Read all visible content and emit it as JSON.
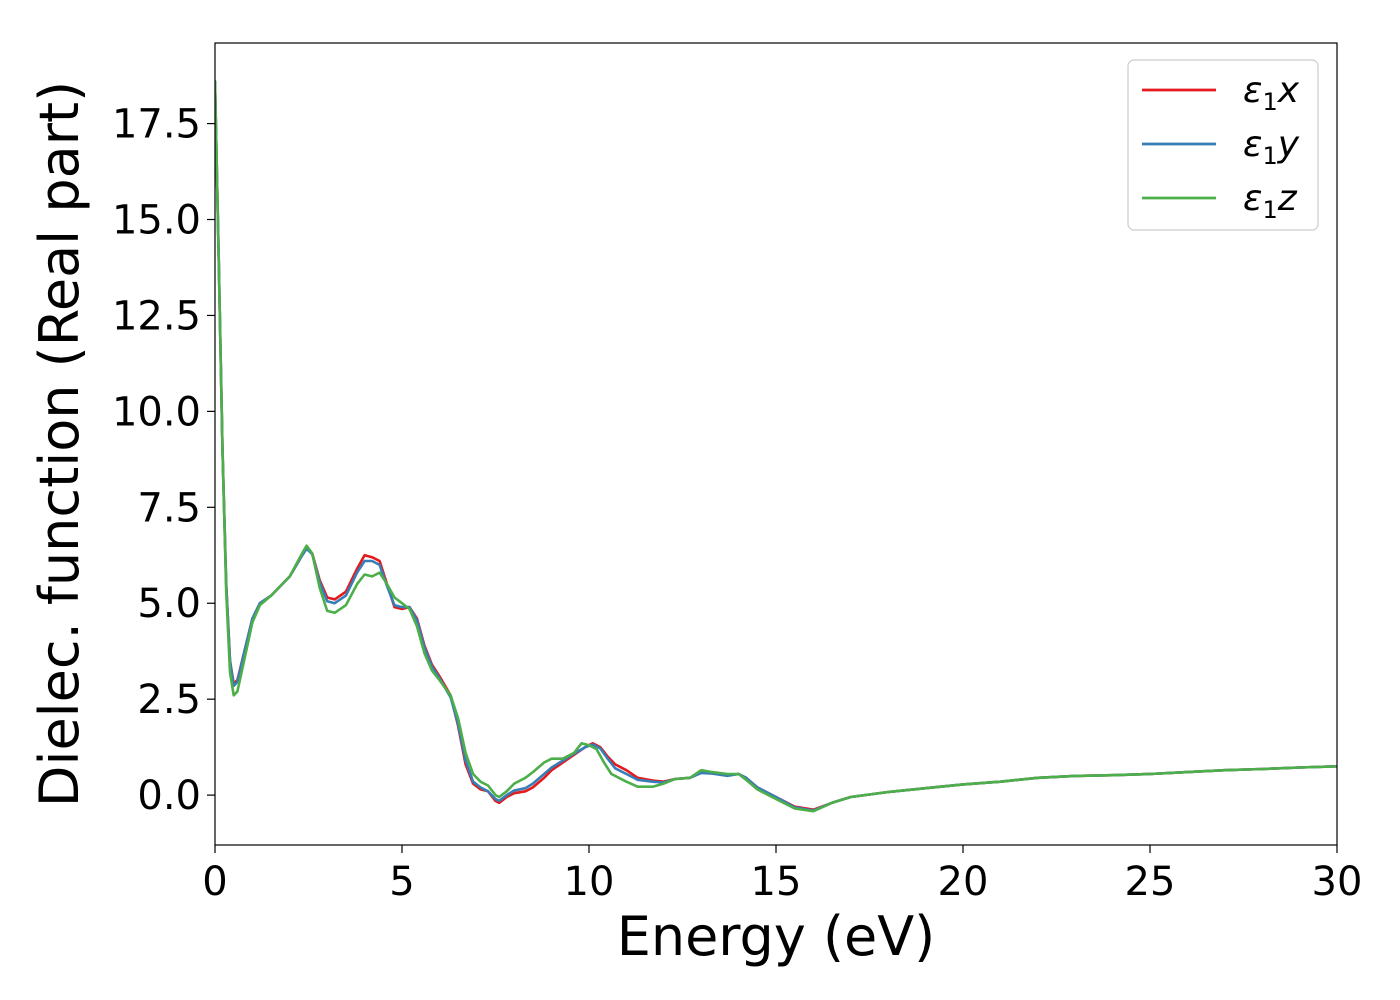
{
  "chart_data": {
    "type": "line",
    "title": "",
    "xlabel": "Energy (eV)",
    "ylabel": "Dielec. function (Real part)",
    "xlim": [
      0,
      30
    ],
    "ylim": [
      -1.3,
      19.6
    ],
    "x_ticks": [
      0,
      5,
      10,
      15,
      20,
      25,
      30
    ],
    "x_tick_labels": [
      "0",
      "5",
      "10",
      "15",
      "20",
      "25",
      "30"
    ],
    "y_ticks": [
      0.0,
      2.5,
      5.0,
      7.5,
      10.0,
      12.5,
      15.0,
      17.5
    ],
    "y_tick_labels": [
      "0.0",
      "2.5",
      "5.0",
      "7.5",
      "10.0",
      "12.5",
      "15.0",
      "17.5"
    ],
    "grid": false,
    "legend_position": "top-right",
    "series": [
      {
        "name": "ε1x",
        "legend_base": "ε",
        "legend_sub": "1",
        "legend_suffix": "x",
        "color": "#e41a1c",
        "points": [
          [
            0,
            18.6
          ],
          [
            0.1,
            14.0
          ],
          [
            0.2,
            9.0
          ],
          [
            0.3,
            5.5
          ],
          [
            0.4,
            3.5
          ],
          [
            0.5,
            2.9
          ],
          [
            0.6,
            3.0
          ],
          [
            0.8,
            3.8
          ],
          [
            1.0,
            4.6
          ],
          [
            1.2,
            5.0
          ],
          [
            1.5,
            5.2
          ],
          [
            2.0,
            5.7
          ],
          [
            2.3,
            6.2
          ],
          [
            2.45,
            6.45
          ],
          [
            2.6,
            6.3
          ],
          [
            2.8,
            5.6
          ],
          [
            3.0,
            5.15
          ],
          [
            3.2,
            5.1
          ],
          [
            3.5,
            5.3
          ],
          [
            3.8,
            5.9
          ],
          [
            4.0,
            6.25
          ],
          [
            4.2,
            6.2
          ],
          [
            4.4,
            6.1
          ],
          [
            4.6,
            5.5
          ],
          [
            4.8,
            4.9
          ],
          [
            5.0,
            4.85
          ],
          [
            5.2,
            4.9
          ],
          [
            5.4,
            4.6
          ],
          [
            5.6,
            3.9
          ],
          [
            5.8,
            3.4
          ],
          [
            6.0,
            3.1
          ],
          [
            6.3,
            2.6
          ],
          [
            6.5,
            1.8
          ],
          [
            6.7,
            0.8
          ],
          [
            6.9,
            0.3
          ],
          [
            7.1,
            0.15
          ],
          [
            7.3,
            0.1
          ],
          [
            7.5,
            -0.15
          ],
          [
            7.6,
            -0.2
          ],
          [
            7.8,
            -0.05
          ],
          [
            8.0,
            0.05
          ],
          [
            8.3,
            0.1
          ],
          [
            8.5,
            0.2
          ],
          [
            8.8,
            0.45
          ],
          [
            9.0,
            0.65
          ],
          [
            9.3,
            0.85
          ],
          [
            9.6,
            1.05
          ],
          [
            9.9,
            1.25
          ],
          [
            10.1,
            1.35
          ],
          [
            10.3,
            1.25
          ],
          [
            10.5,
            1.0
          ],
          [
            10.7,
            0.8
          ],
          [
            11.0,
            0.65
          ],
          [
            11.3,
            0.45
          ],
          [
            11.7,
            0.38
          ],
          [
            12.0,
            0.35
          ],
          [
            12.3,
            0.42
          ],
          [
            12.7,
            0.45
          ],
          [
            13.0,
            0.6
          ],
          [
            13.3,
            0.58
          ],
          [
            13.7,
            0.52
          ],
          [
            14.0,
            0.55
          ],
          [
            14.2,
            0.45
          ],
          [
            14.5,
            0.2
          ],
          [
            15.0,
            -0.05
          ],
          [
            15.5,
            -0.3
          ],
          [
            16.0,
            -0.38
          ],
          [
            16.5,
            -0.2
          ],
          [
            17.0,
            -0.05
          ],
          [
            18.0,
            0.08
          ],
          [
            19.0,
            0.18
          ],
          [
            20.0,
            0.28
          ],
          [
            21.0,
            0.35
          ],
          [
            22.0,
            0.45
          ],
          [
            23.0,
            0.5
          ],
          [
            24.0,
            0.52
          ],
          [
            25.0,
            0.55
          ],
          [
            26.0,
            0.6
          ],
          [
            27.0,
            0.65
          ],
          [
            28.0,
            0.68
          ],
          [
            29.0,
            0.72
          ],
          [
            30.0,
            0.75
          ]
        ]
      },
      {
        "name": "ε1y",
        "legend_base": "ε",
        "legend_sub": "1",
        "legend_suffix": "y",
        "color": "#377eb8",
        "points": [
          [
            0,
            18.6
          ],
          [
            0.1,
            14.0
          ],
          [
            0.2,
            9.0
          ],
          [
            0.3,
            5.5
          ],
          [
            0.4,
            3.5
          ],
          [
            0.5,
            2.85
          ],
          [
            0.6,
            2.95
          ],
          [
            0.8,
            3.8
          ],
          [
            1.0,
            4.6
          ],
          [
            1.2,
            5.0
          ],
          [
            1.5,
            5.2
          ],
          [
            2.0,
            5.7
          ],
          [
            2.3,
            6.2
          ],
          [
            2.45,
            6.42
          ],
          [
            2.6,
            6.28
          ],
          [
            2.8,
            5.55
          ],
          [
            3.0,
            5.05
          ],
          [
            3.2,
            5.0
          ],
          [
            3.5,
            5.2
          ],
          [
            3.8,
            5.8
          ],
          [
            4.0,
            6.1
          ],
          [
            4.2,
            6.1
          ],
          [
            4.4,
            6.0
          ],
          [
            4.6,
            5.45
          ],
          [
            4.8,
            4.95
          ],
          [
            5.0,
            4.9
          ],
          [
            5.2,
            4.9
          ],
          [
            5.4,
            4.55
          ],
          [
            5.6,
            3.85
          ],
          [
            5.8,
            3.35
          ],
          [
            6.0,
            3.05
          ],
          [
            6.3,
            2.55
          ],
          [
            6.5,
            1.85
          ],
          [
            6.7,
            0.9
          ],
          [
            6.9,
            0.35
          ],
          [
            7.1,
            0.2
          ],
          [
            7.3,
            0.1
          ],
          [
            7.5,
            -0.1
          ],
          [
            7.6,
            -0.15
          ],
          [
            7.8,
            0.0
          ],
          [
            8.0,
            0.12
          ],
          [
            8.3,
            0.18
          ],
          [
            8.5,
            0.3
          ],
          [
            8.8,
            0.55
          ],
          [
            9.0,
            0.72
          ],
          [
            9.3,
            0.9
          ],
          [
            9.6,
            1.08
          ],
          [
            9.9,
            1.25
          ],
          [
            10.1,
            1.32
          ],
          [
            10.3,
            1.22
          ],
          [
            10.5,
            0.95
          ],
          [
            10.7,
            0.7
          ],
          [
            11.0,
            0.55
          ],
          [
            11.3,
            0.4
          ],
          [
            11.7,
            0.35
          ],
          [
            12.0,
            0.33
          ],
          [
            12.3,
            0.42
          ],
          [
            12.7,
            0.45
          ],
          [
            13.0,
            0.58
          ],
          [
            13.3,
            0.56
          ],
          [
            13.7,
            0.5
          ],
          [
            14.0,
            0.55
          ],
          [
            14.2,
            0.45
          ],
          [
            14.5,
            0.2
          ],
          [
            15.0,
            -0.05
          ],
          [
            15.5,
            -0.32
          ],
          [
            16.0,
            -0.4
          ],
          [
            16.5,
            -0.2
          ],
          [
            17.0,
            -0.05
          ],
          [
            18.0,
            0.08
          ],
          [
            19.0,
            0.18
          ],
          [
            20.0,
            0.28
          ],
          [
            21.0,
            0.35
          ],
          [
            22.0,
            0.45
          ],
          [
            23.0,
            0.5
          ],
          [
            24.0,
            0.52
          ],
          [
            25.0,
            0.55
          ],
          [
            26.0,
            0.6
          ],
          [
            27.0,
            0.65
          ],
          [
            28.0,
            0.68
          ],
          [
            29.0,
            0.72
          ],
          [
            30.0,
            0.75
          ]
        ]
      },
      {
        "name": "ε1z",
        "legend_base": "ε",
        "legend_sub": "1",
        "legend_suffix": "z",
        "color": "#4daf4a",
        "points": [
          [
            0,
            18.6
          ],
          [
            0.1,
            14.0
          ],
          [
            0.2,
            9.0
          ],
          [
            0.3,
            5.3
          ],
          [
            0.4,
            3.2
          ],
          [
            0.5,
            2.6
          ],
          [
            0.6,
            2.7
          ],
          [
            0.8,
            3.6
          ],
          [
            1.0,
            4.5
          ],
          [
            1.2,
            4.95
          ],
          [
            1.5,
            5.2
          ],
          [
            2.0,
            5.7
          ],
          [
            2.3,
            6.25
          ],
          [
            2.45,
            6.5
          ],
          [
            2.6,
            6.3
          ],
          [
            2.8,
            5.4
          ],
          [
            3.0,
            4.8
          ],
          [
            3.2,
            4.75
          ],
          [
            3.5,
            4.95
          ],
          [
            3.8,
            5.5
          ],
          [
            4.0,
            5.75
          ],
          [
            4.2,
            5.7
          ],
          [
            4.4,
            5.8
          ],
          [
            4.6,
            5.5
          ],
          [
            4.8,
            5.15
          ],
          [
            5.0,
            5.0
          ],
          [
            5.2,
            4.85
          ],
          [
            5.4,
            4.4
          ],
          [
            5.6,
            3.7
          ],
          [
            5.8,
            3.25
          ],
          [
            6.0,
            3.0
          ],
          [
            6.3,
            2.6
          ],
          [
            6.5,
            2.0
          ],
          [
            6.7,
            1.1
          ],
          [
            6.9,
            0.55
          ],
          [
            7.1,
            0.35
          ],
          [
            7.3,
            0.25
          ],
          [
            7.5,
            0.0
          ],
          [
            7.6,
            -0.05
          ],
          [
            7.8,
            0.1
          ],
          [
            8.0,
            0.3
          ],
          [
            8.3,
            0.45
          ],
          [
            8.5,
            0.6
          ],
          [
            8.8,
            0.85
          ],
          [
            9.0,
            0.95
          ],
          [
            9.3,
            0.95
          ],
          [
            9.6,
            1.1
          ],
          [
            9.8,
            1.35
          ],
          [
            10.0,
            1.3
          ],
          [
            10.2,
            1.2
          ],
          [
            10.4,
            0.85
          ],
          [
            10.6,
            0.55
          ],
          [
            11.0,
            0.35
          ],
          [
            11.3,
            0.22
          ],
          [
            11.7,
            0.22
          ],
          [
            12.0,
            0.3
          ],
          [
            12.3,
            0.42
          ],
          [
            12.7,
            0.45
          ],
          [
            13.0,
            0.65
          ],
          [
            13.3,
            0.6
          ],
          [
            13.7,
            0.55
          ],
          [
            14.0,
            0.55
          ],
          [
            14.2,
            0.4
          ],
          [
            14.5,
            0.15
          ],
          [
            15.0,
            -0.1
          ],
          [
            15.5,
            -0.35
          ],
          [
            16.0,
            -0.42
          ],
          [
            16.5,
            -0.2
          ],
          [
            17.0,
            -0.05
          ],
          [
            18.0,
            0.08
          ],
          [
            19.0,
            0.18
          ],
          [
            20.0,
            0.28
          ],
          [
            21.0,
            0.35
          ],
          [
            22.0,
            0.45
          ],
          [
            23.0,
            0.5
          ],
          [
            24.0,
            0.52
          ],
          [
            25.0,
            0.55
          ],
          [
            26.0,
            0.6
          ],
          [
            27.0,
            0.65
          ],
          [
            28.0,
            0.68
          ],
          [
            29.0,
            0.72
          ],
          [
            30.0,
            0.75
          ]
        ]
      }
    ]
  }
}
